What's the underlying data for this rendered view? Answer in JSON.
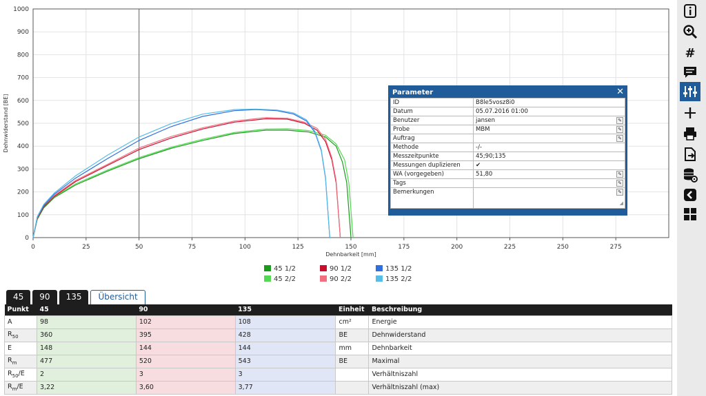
{
  "chart_data": {
    "type": "line",
    "xlabel": "Dehnbarkeit [mm]",
    "ylabel": "Dehnwiderstand [BE]",
    "xlim": [
      0,
      300
    ],
    "ylim": [
      0,
      1000
    ],
    "x_ticks": [
      "0",
      "25",
      "50",
      "75",
      "100",
      "125",
      "150",
      "175",
      "200",
      "225",
      "250",
      "275"
    ],
    "y_ticks": [
      "0",
      "100",
      "200",
      "300",
      "400",
      "500",
      "600",
      "700",
      "800",
      "900",
      "1000"
    ],
    "vline_x": 50,
    "grid": true,
    "legend_placement": "bottom",
    "series": [
      {
        "name": "45 1/2",
        "color": "#1a9b1a",
        "points": [
          [
            0,
            0
          ],
          [
            2,
            80
          ],
          [
            5,
            130
          ],
          [
            10,
            175
          ],
          [
            20,
            230
          ],
          [
            35,
            290
          ],
          [
            50,
            345
          ],
          [
            65,
            390
          ],
          [
            80,
            425
          ],
          [
            95,
            455
          ],
          [
            110,
            470
          ],
          [
            120,
            470
          ],
          [
            130,
            462
          ],
          [
            138,
            440
          ],
          [
            143,
            400
          ],
          [
            146,
            330
          ],
          [
            148,
            240
          ],
          [
            150,
            0
          ]
        ]
      },
      {
        "name": "45 2/2",
        "color": "#55d955",
        "points": [
          [
            0,
            0
          ],
          [
            2,
            85
          ],
          [
            5,
            135
          ],
          [
            10,
            178
          ],
          [
            20,
            235
          ],
          [
            35,
            295
          ],
          [
            50,
            350
          ],
          [
            65,
            395
          ],
          [
            80,
            430
          ],
          [
            95,
            460
          ],
          [
            110,
            475
          ],
          [
            120,
            476
          ],
          [
            130,
            468
          ],
          [
            138,
            448
          ],
          [
            143,
            410
          ],
          [
            147,
            340
          ],
          [
            149,
            240
          ],
          [
            151,
            0
          ]
        ]
      },
      {
        "name": "90 1/2",
        "color": "#c8102e",
        "points": [
          [
            0,
            0
          ],
          [
            2,
            85
          ],
          [
            5,
            135
          ],
          [
            10,
            180
          ],
          [
            20,
            245
          ],
          [
            35,
            315
          ],
          [
            50,
            385
          ],
          [
            65,
            435
          ],
          [
            80,
            475
          ],
          [
            95,
            505
          ],
          [
            110,
            520
          ],
          [
            120,
            518
          ],
          [
            128,
            500
          ],
          [
            134,
            470
          ],
          [
            138,
            420
          ],
          [
            141,
            340
          ],
          [
            143,
            240
          ],
          [
            145,
            0
          ]
        ]
      },
      {
        "name": "90 2/2",
        "color": "#f07080",
        "points": [
          [
            0,
            0
          ],
          [
            2,
            88
          ],
          [
            5,
            140
          ],
          [
            10,
            185
          ],
          [
            20,
            250
          ],
          [
            35,
            320
          ],
          [
            50,
            392
          ],
          [
            65,
            442
          ],
          [
            80,
            480
          ],
          [
            95,
            510
          ],
          [
            110,
            525
          ],
          [
            120,
            522
          ],
          [
            128,
            505
          ],
          [
            134,
            478
          ],
          [
            138,
            430
          ],
          [
            141,
            350
          ],
          [
            143,
            250
          ],
          [
            145,
            0
          ]
        ]
      },
      {
        "name": "135 1/2",
        "color": "#2f6fe0",
        "points": [
          [
            0,
            0
          ],
          [
            2,
            90
          ],
          [
            5,
            140
          ],
          [
            10,
            190
          ],
          [
            20,
            260
          ],
          [
            35,
            345
          ],
          [
            50,
            425
          ],
          [
            65,
            485
          ],
          [
            80,
            530
          ],
          [
            95,
            555
          ],
          [
            105,
            560
          ],
          [
            115,
            555
          ],
          [
            123,
            540
          ],
          [
            129,
            510
          ],
          [
            133,
            460
          ],
          [
            136,
            380
          ],
          [
            138,
            260
          ],
          [
            140,
            0
          ]
        ]
      },
      {
        "name": "135 2/2",
        "color": "#55bde8",
        "points": [
          [
            0,
            0
          ],
          [
            2,
            92
          ],
          [
            5,
            145
          ],
          [
            10,
            195
          ],
          [
            20,
            270
          ],
          [
            35,
            360
          ],
          [
            50,
            440
          ],
          [
            65,
            498
          ],
          [
            80,
            540
          ],
          [
            95,
            560
          ],
          [
            105,
            562
          ],
          [
            115,
            558
          ],
          [
            123,
            545
          ],
          [
            129,
            515
          ],
          [
            133,
            465
          ],
          [
            136,
            385
          ],
          [
            138,
            265
          ],
          [
            140,
            0
          ]
        ]
      }
    ]
  },
  "legend": [
    {
      "label": "45 1/2",
      "color": "#1a9b1a"
    },
    {
      "label": "90 1/2",
      "color": "#c8102e"
    },
    {
      "label": "135 1/2",
      "color": "#2f6fe0"
    },
    {
      "label": "45 2/2",
      "color": "#55d955"
    },
    {
      "label": "90 2/2",
      "color": "#f07080"
    },
    {
      "label": "135 2/2",
      "color": "#55bde8"
    }
  ],
  "parameter": {
    "title": "Parameter",
    "close": "✕",
    "rows": [
      {
        "key": "ID",
        "value": "B8le5vosz8i0",
        "edit": false
      },
      {
        "key": "Datum",
        "value": "05.07.2016 01:00",
        "edit": false
      },
      {
        "key": "Benutzer",
        "value": "jansen",
        "edit": true
      },
      {
        "key": "Probe",
        "value": "MBM",
        "edit": true
      },
      {
        "key": "Auftrag",
        "value": "",
        "edit": true
      },
      {
        "key": "Methode",
        "value": "-/-",
        "edit": false
      },
      {
        "key": "Messzeitpunkte",
        "value": "45;90;135",
        "edit": false
      },
      {
        "key": "Messungen duplizieren",
        "value": "✔",
        "edit": false
      },
      {
        "key": "WA (vorgegeben)",
        "value": "51,80",
        "edit": true
      },
      {
        "key": "Tags",
        "value": "",
        "edit": true
      },
      {
        "key": "Bemerkungen",
        "value": "",
        "edit": true
      }
    ]
  },
  "sidebar": {
    "icons": [
      "info-icon",
      "zoom-icon",
      "hash-icon",
      "comment-icon",
      "sliders-icon",
      "marker-icon",
      "print-icon",
      "export-icon",
      "database-settings-icon",
      "back-icon",
      "grid-icon"
    ]
  },
  "tabs": [
    "45",
    "90",
    "135",
    "Übersicht"
  ],
  "table": {
    "headers": [
      "Punkt",
      "45",
      "90",
      "135",
      "Einheit",
      "Beschreibung"
    ],
    "rows": [
      {
        "punkt": "A",
        "sub": "",
        "suffix": "",
        "v45": "98",
        "v90": "102",
        "v135": "108",
        "unit": "cm²",
        "desc": "Energie"
      },
      {
        "punkt": "R",
        "sub": "50",
        "suffix": "",
        "v45": "360",
        "v90": "395",
        "v135": "428",
        "unit": "BE",
        "desc": "Dehnwiderstand"
      },
      {
        "punkt": "E",
        "sub": "",
        "suffix": "",
        "v45": "148",
        "v90": "144",
        "v135": "144",
        "unit": "mm",
        "desc": "Dehnbarkeit"
      },
      {
        "punkt": "R",
        "sub": "m",
        "suffix": "",
        "v45": "477",
        "v90": "520",
        "v135": "543",
        "unit": "BE",
        "desc": "Maximal"
      },
      {
        "punkt": "R",
        "sub": "50",
        "suffix": "/E",
        "v45": "2",
        "v90": "3",
        "v135": "3",
        "unit": "",
        "desc": "Verhältniszahl"
      },
      {
        "punkt": "R",
        "sub": "m",
        "suffix": "/E",
        "v45": "3,22",
        "v90": "3,60",
        "v135": "3,77",
        "unit": "",
        "desc": "Verhältniszahl (max)"
      }
    ]
  }
}
